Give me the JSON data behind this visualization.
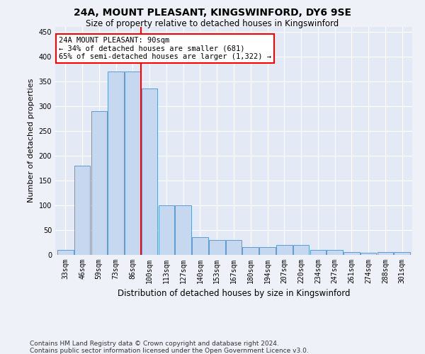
{
  "title1": "24A, MOUNT PLEASANT, KINGSWINFORD, DY6 9SE",
  "title2": "Size of property relative to detached houses in Kingswinford",
  "xlabel": "Distribution of detached houses by size in Kingswinford",
  "ylabel": "Number of detached properties",
  "categories": [
    "33sqm",
    "46sqm",
    "59sqm",
    "73sqm",
    "86sqm",
    "100sqm",
    "113sqm",
    "127sqm",
    "140sqm",
    "153sqm",
    "167sqm",
    "180sqm",
    "194sqm",
    "207sqm",
    "220sqm",
    "234sqm",
    "247sqm",
    "261sqm",
    "274sqm",
    "288sqm",
    "301sqm"
  ],
  "values": [
    10,
    180,
    290,
    370,
    370,
    335,
    100,
    100,
    35,
    30,
    30,
    15,
    15,
    20,
    20,
    10,
    10,
    5,
    4,
    5,
    5
  ],
  "bar_color": "#c5d8f0",
  "bar_edge_color": "#5b9bd5",
  "vertical_line_x": 4.48,
  "annotation_text": "24A MOUNT PLEASANT: 90sqm\n← 34% of detached houses are smaller (681)\n65% of semi-detached houses are larger (1,322) →",
  "footer1": "Contains HM Land Registry data © Crown copyright and database right 2024.",
  "footer2": "Contains public sector information licensed under the Open Government Licence v3.0.",
  "ylim_max": 460,
  "yticks": [
    0,
    50,
    100,
    150,
    200,
    250,
    300,
    350,
    400,
    450
  ],
  "fig_bg": "#eef2f8",
  "ax_bg": "#e4eaf5",
  "title1_fontsize": 10,
  "title2_fontsize": 8.5,
  "ylabel_fontsize": 8,
  "xlabel_fontsize": 8.5,
  "tick_fontsize": 7,
  "ann_fontsize": 7.5,
  "footer_fontsize": 6.5
}
